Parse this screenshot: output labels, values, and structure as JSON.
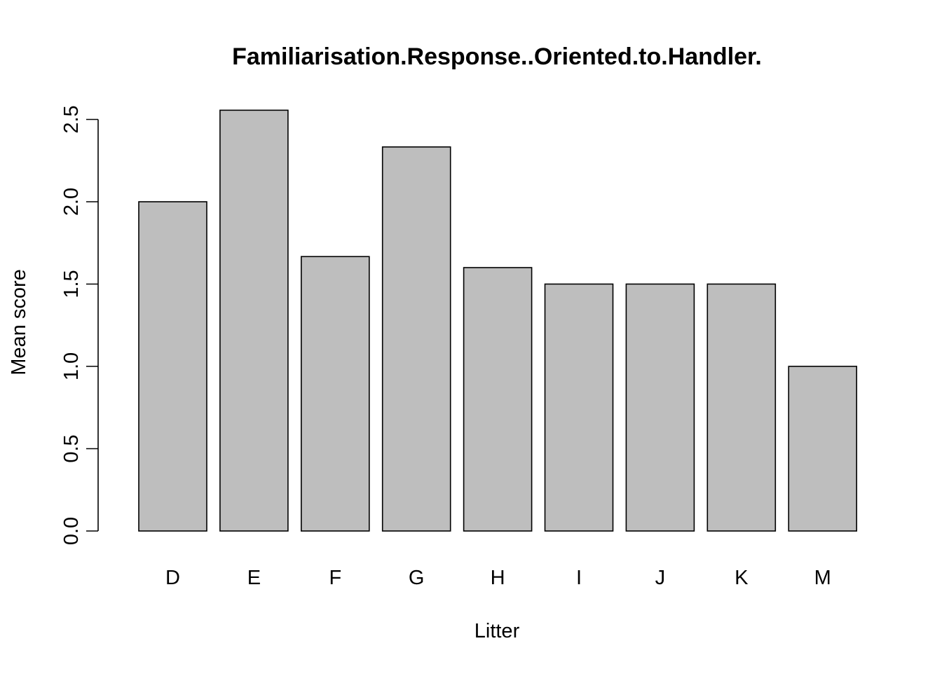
{
  "chart_data": {
    "type": "bar",
    "title": "Familiarisation.Response..Oriented.to.Handler.",
    "xlabel": "Litter",
    "ylabel": "Mean score",
    "categories": [
      "D",
      "E",
      "F",
      "G",
      "H",
      "I",
      "J",
      "K",
      "M"
    ],
    "values": [
      2.0,
      2.556,
      1.667,
      2.333,
      1.6,
      1.5,
      1.5,
      1.5,
      1.0
    ],
    "yticks": [
      "0.0",
      "0.5",
      "1.0",
      "1.5",
      "2.0",
      "2.5"
    ],
    "ylim": [
      0,
      2.5
    ],
    "grid": false,
    "bar_color": "#bebebe",
    "edge_color": "#000000"
  }
}
